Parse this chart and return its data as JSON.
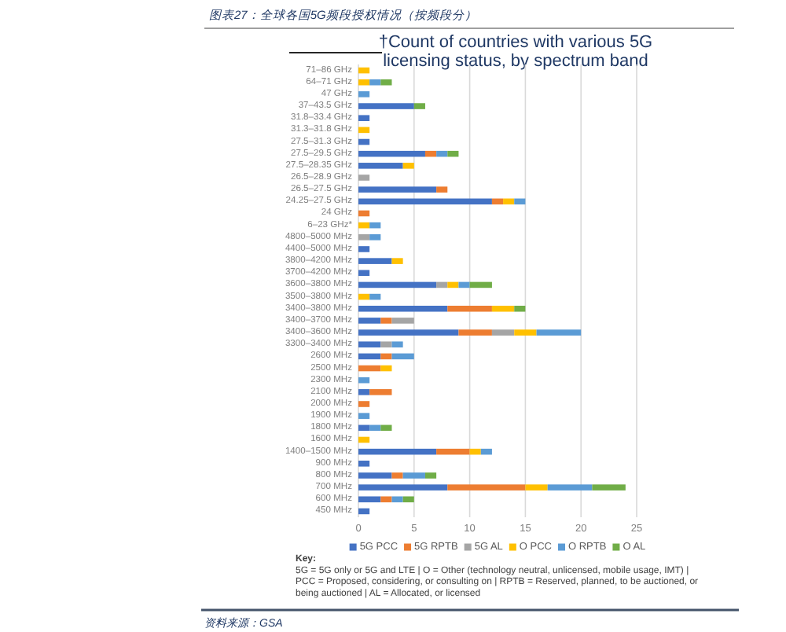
{
  "chart_data": {
    "type": "bar",
    "orientation": "horizontal",
    "stacked": true,
    "title": "图表27：全球各国5G频段授权情况（按频段分）",
    "subtitle": "†Count of countries with various 5G licensing status, by spectrum band",
    "categories": [
      "71–86 GHz",
      "64–71 GHz",
      "47 GHz",
      "37–43.5 GHz",
      "31.8–33.4 GHz",
      "31.3–31.8 GHz",
      "27.5–31.3 GHz",
      "27.5–29.5 GHz",
      "27.5–28.35 GHz",
      "26.5–28.9 GHz",
      "26.5–27.5 GHz",
      "24.25–27.5 GHz",
      "24 GHz",
      "6–23 GHz*",
      "4800–5000 MHz",
      "4400–5000 MHz",
      "3800–4200 MHz",
      "3700–4200 MHz",
      "3600–3800 MHz",
      "3500–3800 MHz",
      "3400–3800 MHz",
      "3400–3700 MHz",
      "3400–3600 MHz",
      "3300–3400 MHz",
      "2600 MHz",
      "2500 MHz",
      "2300 MHz",
      "2100 MHz",
      "2000 MHz",
      "1900 MHz",
      "1800 MHz",
      "1600 MHz",
      "1400–1500 MHz",
      "900 MHz",
      "800 MHz",
      "700 MHz",
      "600 MHz",
      "450 MHz"
    ],
    "series": [
      {
        "name": "5G PCC",
        "color": "#4472c4",
        "values": [
          null,
          null,
          null,
          5,
          1,
          null,
          1,
          6,
          4,
          null,
          7,
          12,
          null,
          null,
          null,
          1,
          3,
          1,
          7,
          null,
          8,
          2,
          9,
          2,
          2,
          null,
          null,
          1,
          null,
          null,
          1,
          null,
          7,
          1,
          3,
          8,
          2,
          1
        ]
      },
      {
        "name": "5G RPTB",
        "color": "#ed7d31",
        "values": [
          null,
          null,
          null,
          null,
          null,
          null,
          null,
          1,
          null,
          null,
          1,
          1,
          1,
          null,
          null,
          null,
          null,
          null,
          null,
          null,
          4,
          1,
          3,
          null,
          1,
          2,
          null,
          2,
          1,
          null,
          null,
          null,
          3,
          null,
          1,
          7,
          1,
          null
        ]
      },
      {
        "name": "5G AL",
        "color": "#a5a5a5",
        "values": [
          null,
          null,
          null,
          null,
          null,
          null,
          null,
          null,
          null,
          1,
          null,
          null,
          null,
          null,
          1,
          null,
          null,
          null,
          1,
          null,
          null,
          2,
          2,
          1,
          null,
          null,
          null,
          null,
          null,
          null,
          null,
          null,
          null,
          null,
          null,
          null,
          null,
          null
        ]
      },
      {
        "name": "O PCC",
        "color": "#ffc000",
        "values": [
          1,
          1,
          null,
          null,
          null,
          1,
          null,
          null,
          1,
          null,
          null,
          1,
          null,
          1,
          null,
          null,
          1,
          null,
          1,
          1,
          2,
          null,
          2,
          null,
          null,
          1,
          null,
          null,
          null,
          null,
          null,
          1,
          1,
          null,
          null,
          2,
          null,
          null
        ]
      },
      {
        "name": "O RPTB",
        "color": "#5b9bd5",
        "values": [
          null,
          1,
          1,
          null,
          null,
          null,
          null,
          1,
          null,
          null,
          null,
          1,
          null,
          1,
          1,
          null,
          null,
          null,
          1,
          1,
          null,
          null,
          4,
          1,
          2,
          null,
          1,
          null,
          null,
          1,
          1,
          null,
          1,
          null,
          2,
          4,
          1,
          null
        ]
      },
      {
        "name": "O AL",
        "color": "#70ad47",
        "values": [
          null,
          1,
          null,
          1,
          null,
          null,
          null,
          1,
          null,
          null,
          null,
          null,
          null,
          null,
          null,
          null,
          null,
          null,
          2,
          null,
          1,
          null,
          null,
          null,
          null,
          null,
          null,
          null,
          null,
          null,
          1,
          null,
          null,
          null,
          1,
          3,
          1,
          null
        ]
      }
    ],
    "xlim": [
      0,
      25
    ],
    "xticks": [
      0,
      5,
      10,
      15,
      20,
      25
    ],
    "grid": "x",
    "legend": "bottom",
    "annotations": [
      "Key:",
      "5G = 5G only or 5G and LTE | O = Other (technology neutral, unlicensed, mobile usage, IMT) | PCC = Proposed, considering, or consulting on | RPTB = Reserved, planned, to be auctioned, or being auctioned | AL = Allocated, or licensed",
      "资料来源：GSA"
    ]
  }
}
